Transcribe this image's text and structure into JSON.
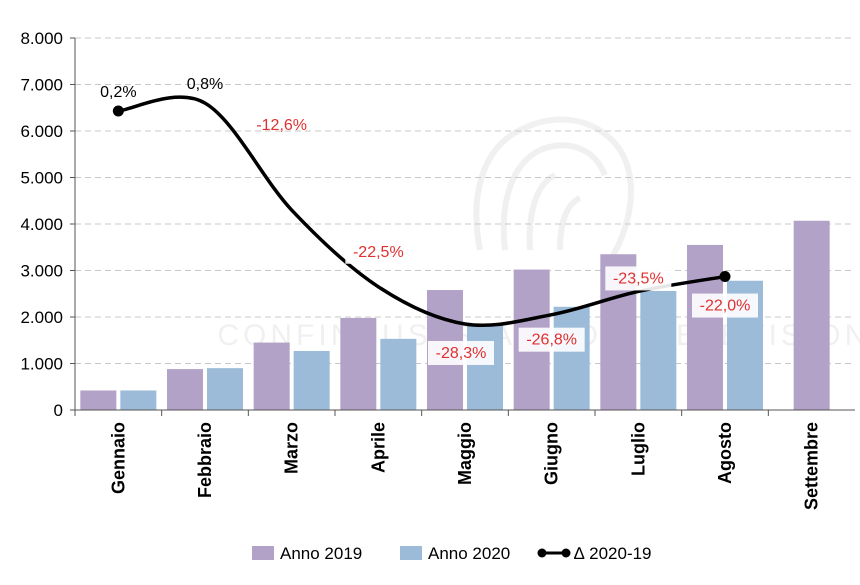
{
  "chart_data": {
    "type": "bar",
    "categories": [
      "Gennaio",
      "Febbraio",
      "Marzo",
      "Aprile",
      "Maggio",
      "Giugno",
      "Luglio",
      "Agosto",
      "Settembre"
    ],
    "series": [
      {
        "name": "Anno 2019",
        "values": [
          420,
          880,
          1450,
          1980,
          2580,
          3020,
          3350,
          3550,
          4070
        ],
        "color": "#b3a2c7"
      },
      {
        "name": "Anno 2020",
        "values": [
          420,
          900,
          1270,
          1530,
          1850,
          2220,
          2560,
          2780,
          null
        ],
        "color": "#9bbbd9"
      }
    ],
    "line_series": {
      "name": "∆ 2020-19",
      "color": "#000000",
      "label_color_negative": "#e03030",
      "points": [
        {
          "category": "Gennaio",
          "y": 6430,
          "label": "0,2%"
        },
        {
          "category": "Febbraio",
          "y": 6600,
          "label": "0,8%"
        },
        {
          "category": "Marzo",
          "y": 4300,
          "label": "-12,6%"
        },
        {
          "category": "Aprile",
          "y": 2650,
          "label": "-22,5%"
        },
        {
          "category": "Maggio",
          "y": 1850,
          "label": "-28,3%"
        },
        {
          "category": "Giugno",
          "y": 2050,
          "label": "-26,8%"
        },
        {
          "category": "Luglio",
          "y": 2550,
          "label": "-23,5%"
        },
        {
          "category": "Agosto",
          "y": 2870,
          "label": "-22,0%"
        }
      ]
    },
    "y_ticks": [
      "0",
      "1.000",
      "2.000",
      "3.000",
      "4.000",
      "5.000",
      "6.000",
      "7.000",
      "8.000"
    ],
    "ylim": [
      0,
      8000
    ],
    "grid": true,
    "legend_position": "bottom",
    "watermark_text": "CONFINDUSTRIA RADIO TELEVISIONI"
  }
}
